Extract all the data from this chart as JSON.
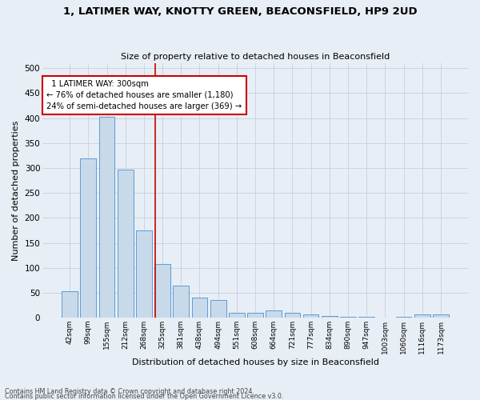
{
  "title1": "1, LATIMER WAY, KNOTTY GREEN, BEACONSFIELD, HP9 2UD",
  "title2": "Size of property relative to detached houses in Beaconsfield",
  "xlabel": "Distribution of detached houses by size in Beaconsfield",
  "ylabel": "Number of detached properties",
  "footnote1": "Contains HM Land Registry data © Crown copyright and database right 2024.",
  "footnote2": "Contains public sector information licensed under the Open Government Licence v3.0.",
  "categories": [
    "42sqm",
    "99sqm",
    "155sqm",
    "212sqm",
    "268sqm",
    "325sqm",
    "381sqm",
    "438sqm",
    "494sqm",
    "551sqm",
    "608sqm",
    "664sqm",
    "721sqm",
    "777sqm",
    "834sqm",
    "890sqm",
    "947sqm",
    "1003sqm",
    "1060sqm",
    "1116sqm",
    "1173sqm"
  ],
  "values": [
    53,
    320,
    402,
    297,
    175,
    108,
    65,
    40,
    36,
    10,
    9,
    15,
    9,
    6,
    4,
    2,
    1,
    0,
    1,
    6,
    6
  ],
  "bar_color": "#c8daea",
  "bar_edge_color": "#5b9bd5",
  "property_label": "1 LATIMER WAY: 300sqm",
  "pct_smaller": 76,
  "n_smaller": "1,180",
  "pct_larger": 24,
  "n_larger": 369,
  "vline_position": 4.62,
  "annotation_box_color": "#ffffff",
  "annotation_box_edge": "#cc0000",
  "vline_color": "#cc0000",
  "ylim": [
    0,
    510
  ],
  "yticks": [
    0,
    50,
    100,
    150,
    200,
    250,
    300,
    350,
    400,
    450,
    500
  ],
  "grid_color": "#c8d4e8",
  "bg_color": "#e8eef5",
  "plot_bg_color": "#e8eef5"
}
